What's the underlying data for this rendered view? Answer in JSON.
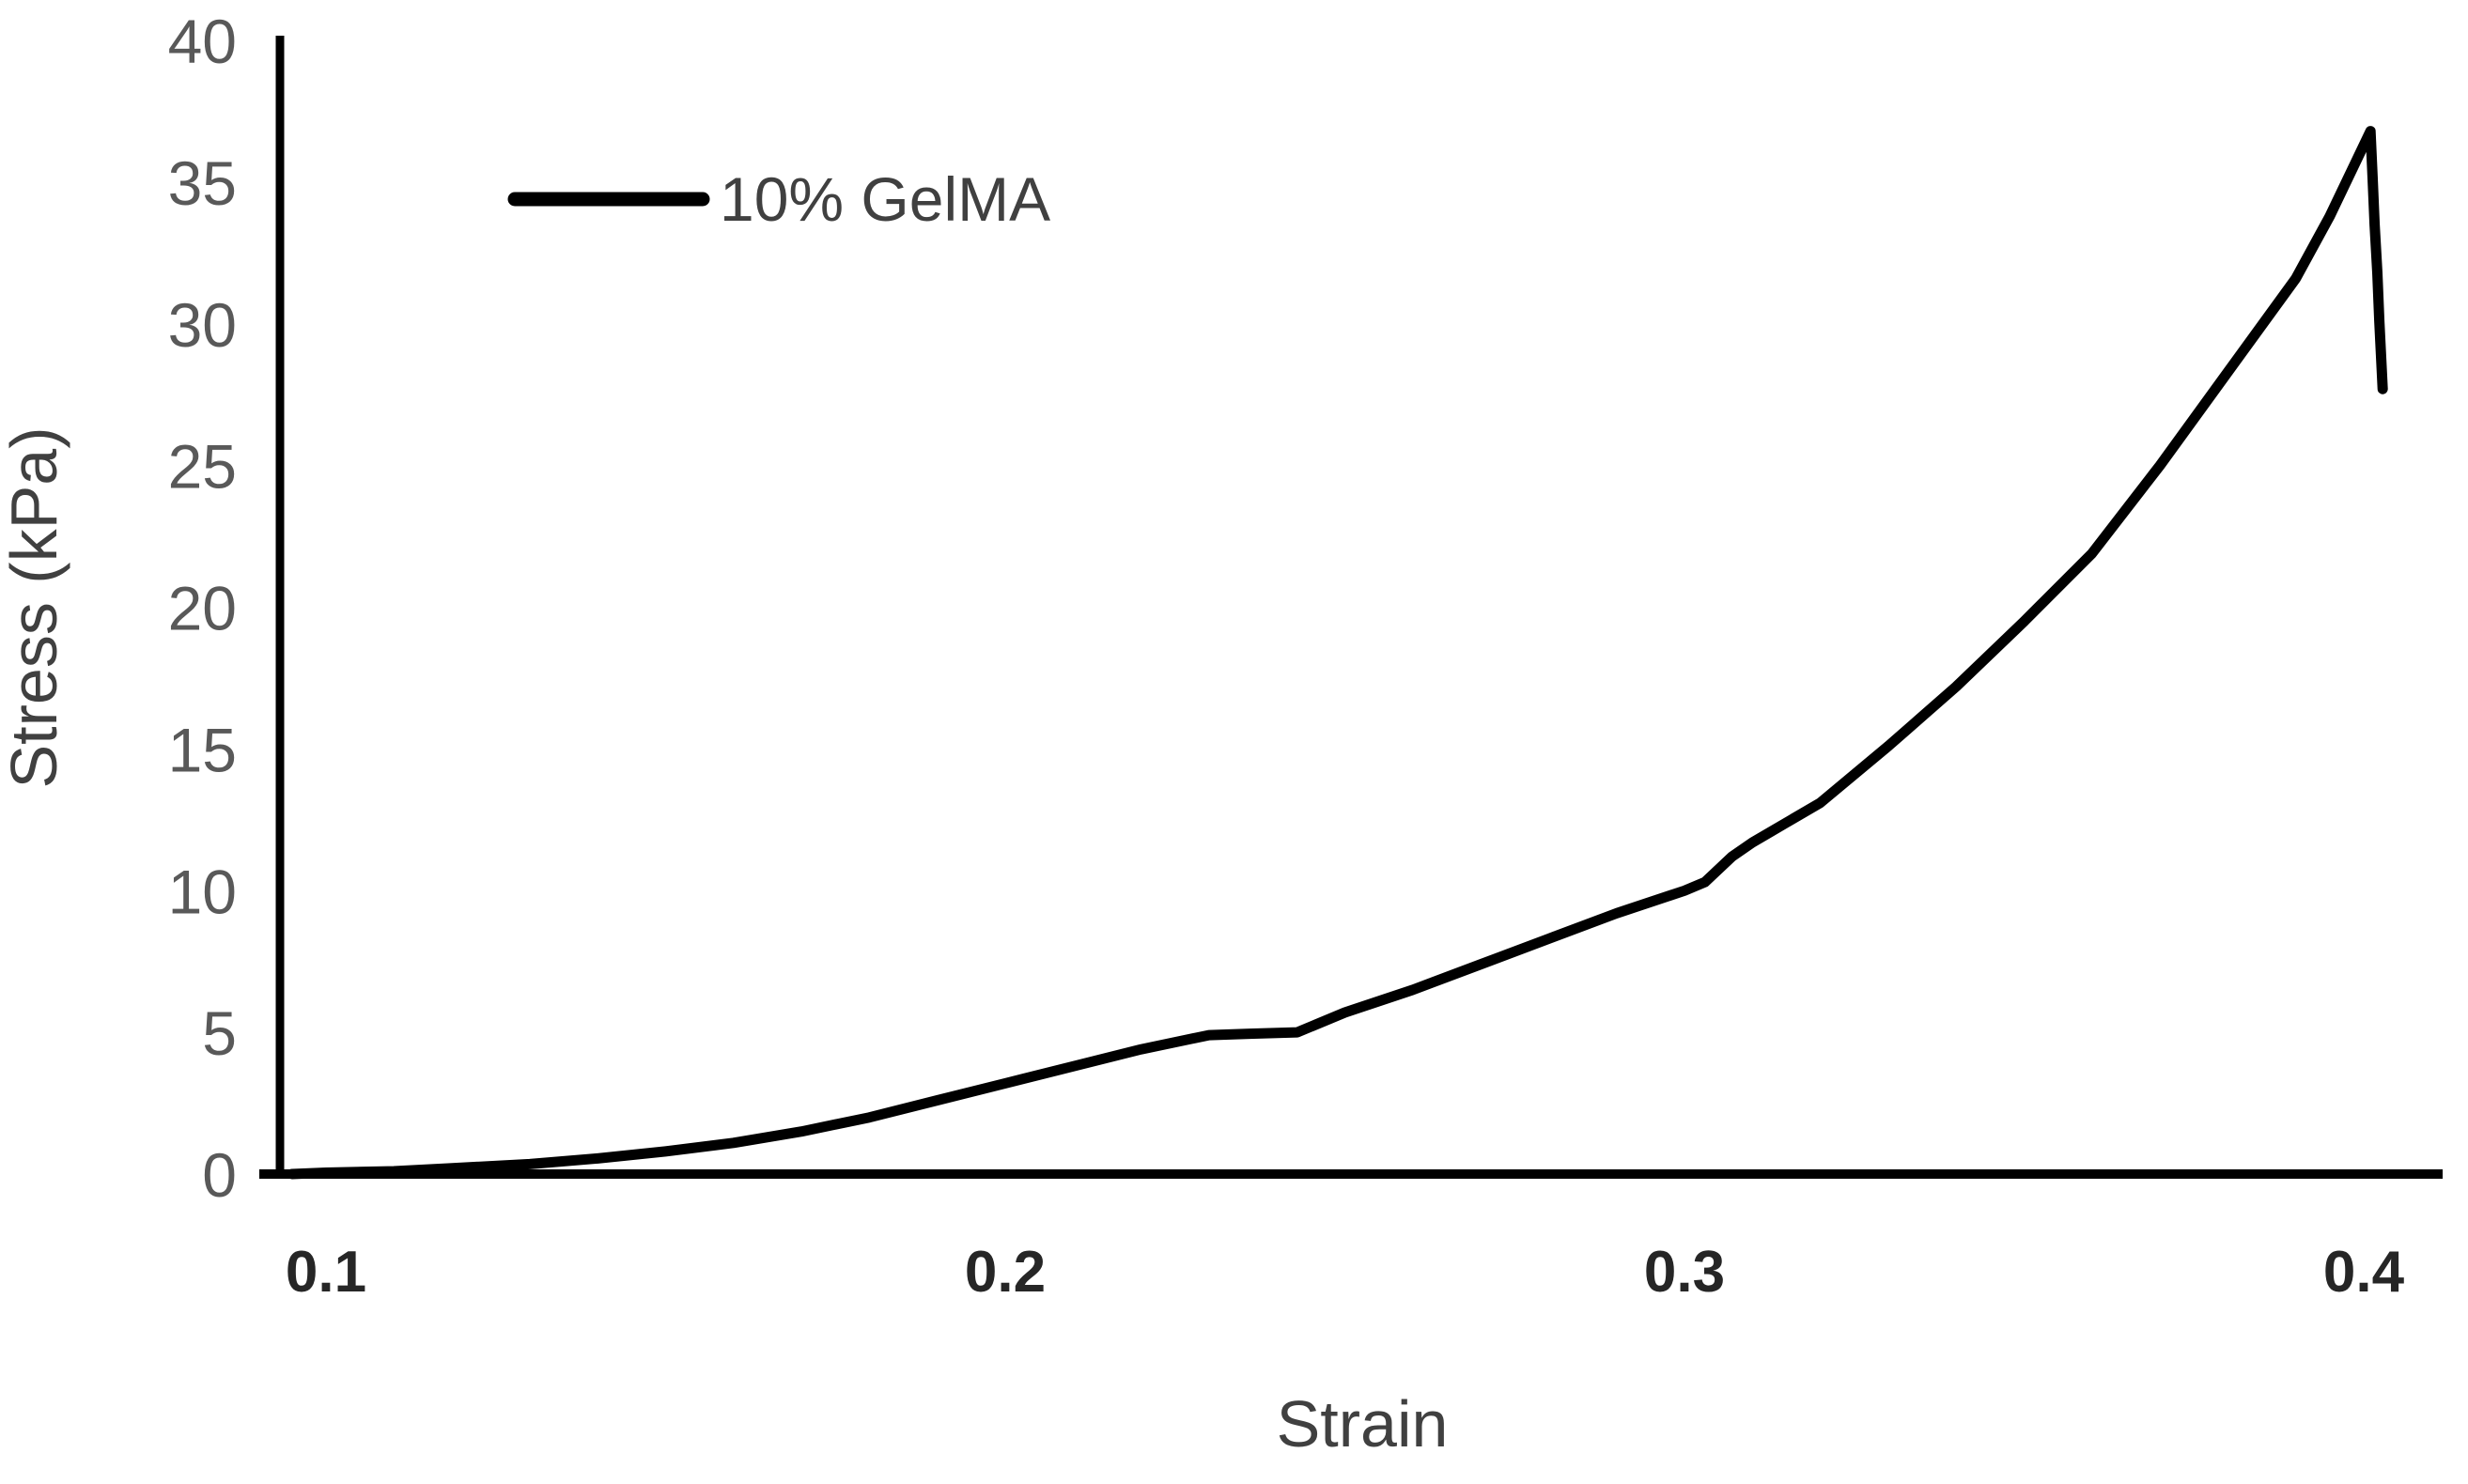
{
  "chart_data": {
    "type": "line",
    "title": "",
    "xlabel": "Strain",
    "ylabel": "Stress (kPa)",
    "xlim": [
      0.093,
      0.413
    ],
    "ylim": [
      0,
      40
    ],
    "x_ticks": [
      "0.1",
      "0.2",
      "0.3",
      "0.4"
    ],
    "x_tick_values": [
      0.1,
      0.2,
      0.3,
      0.4
    ],
    "y_ticks": [
      "0",
      "5",
      "10",
      "15",
      "20",
      "25",
      "30",
      "35",
      "40"
    ],
    "y_tick_values": [
      0,
      5,
      10,
      15,
      20,
      25,
      30,
      35,
      40
    ],
    "grid": false,
    "legend_position": "top-left-inside",
    "line_color": "#000000",
    "series": [
      {
        "name": "10% GelMA",
        "color": "#000000",
        "points": [
          [
            0.095,
            0.0
          ],
          [
            0.1,
            0.05
          ],
          [
            0.11,
            0.1
          ],
          [
            0.118,
            0.2
          ],
          [
            0.13,
            0.35
          ],
          [
            0.14,
            0.55
          ],
          [
            0.15,
            0.8
          ],
          [
            0.16,
            1.1
          ],
          [
            0.17,
            1.5
          ],
          [
            0.18,
            2.0
          ],
          [
            0.19,
            2.6
          ],
          [
            0.2,
            3.2
          ],
          [
            0.21,
            3.8
          ],
          [
            0.22,
            4.4
          ],
          [
            0.23,
            4.9
          ],
          [
            0.236,
            4.95
          ],
          [
            0.243,
            5.0
          ],
          [
            0.25,
            5.7
          ],
          [
            0.26,
            6.5
          ],
          [
            0.27,
            7.4
          ],
          [
            0.28,
            8.3
          ],
          [
            0.29,
            9.2
          ],
          [
            0.3,
            10.0
          ],
          [
            0.303,
            10.3
          ],
          [
            0.307,
            11.2
          ],
          [
            0.31,
            11.7
          ],
          [
            0.32,
            13.1
          ],
          [
            0.33,
            15.1
          ],
          [
            0.34,
            17.2
          ],
          [
            0.35,
            19.5
          ],
          [
            0.36,
            21.9
          ],
          [
            0.37,
            25.0
          ],
          [
            0.38,
            28.3
          ],
          [
            0.39,
            31.6
          ],
          [
            0.395,
            33.8
          ],
          [
            0.399,
            35.8
          ],
          [
            0.401,
            36.8
          ],
          [
            0.4013,
            35.2
          ],
          [
            0.4016,
            33.5
          ],
          [
            0.402,
            31.8
          ],
          [
            0.4023,
            30.1
          ],
          [
            0.4028,
            27.7
          ]
        ],
        "peak": {
          "strain": 0.401,
          "stress_kpa": 36.8
        },
        "failure_drop_end": {
          "strain": 0.403,
          "stress_kpa": 27.7
        }
      }
    ]
  }
}
